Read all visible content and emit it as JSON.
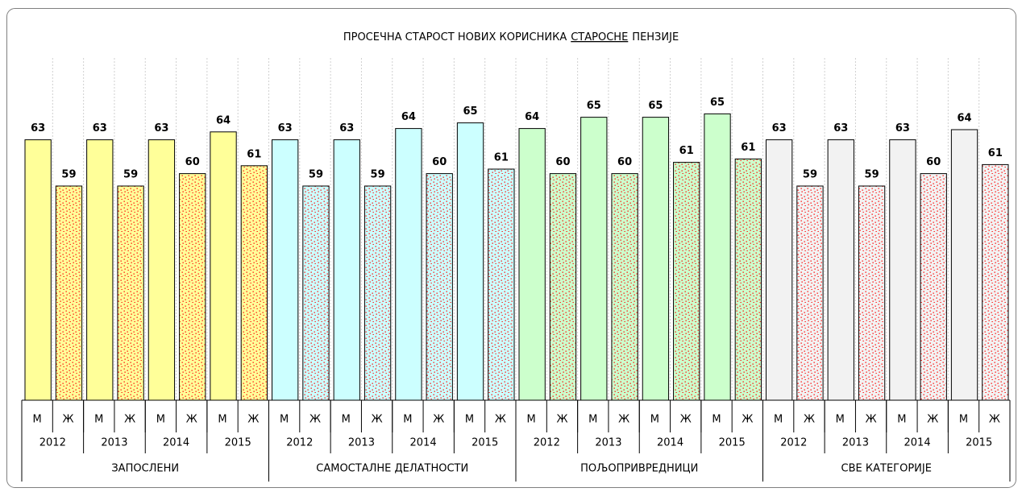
{
  "chart_data": {
    "type": "bar",
    "title": {
      "before": "ПРОСЕЧНА СТАРОСТ НОВИХ КОРИСНИКА",
      "underlined": "СТАРОСНЕ",
      "after": "ПЕНЗИЈЕ"
    },
    "groups": [
      "ЗАПОСЛЕНИ",
      "САМОСТАЛНЕ ДЕЛАТНОСТИ",
      "ПОЉОПРИВРЕДНИЦИ",
      "СВЕ КАТЕГОРИЈЕ"
    ],
    "group_colors": [
      "#ffff99",
      "#ccffff",
      "#ccffcc",
      "#f2f2f2"
    ],
    "pattern_color": "#ff0000",
    "categories": [
      "2012",
      "2013",
      "2014",
      "2015",
      "2012",
      "2013",
      "2014",
      "2015",
      "2012",
      "2013",
      "2014",
      "2015",
      "2012",
      "2013",
      "2014",
      "2015"
    ],
    "series": [
      {
        "name": "М",
        "pattern": "solid",
        "values": [
          63.1,
          63.1,
          63.1,
          63.8,
          63.1,
          63.1,
          64.1,
          64.6,
          64.1,
          65.1,
          65.1,
          65.4,
          63.1,
          63.1,
          63.1,
          64.0
        ],
        "value_labels": [
          "63",
          "63",
          "63",
          "64",
          "63",
          "63",
          "64",
          "65",
          "64",
          "65",
          "65",
          "65",
          "63",
          "63",
          "63",
          "64"
        ]
      },
      {
        "name": "Ж",
        "pattern": "dots",
        "values": [
          59.0,
          59.0,
          60.1,
          60.8,
          59.0,
          59.0,
          60.1,
          60.5,
          60.1,
          60.1,
          61.1,
          61.4,
          59.0,
          59.0,
          60.1,
          60.9
        ],
        "value_labels": [
          "59",
          "59",
          "60",
          "61",
          "59",
          "59",
          "60",
          "61",
          "60",
          "60",
          "61",
          "61",
          "59",
          "59",
          "60",
          "61"
        ]
      }
    ],
    "ylim": [
      40,
      70
    ],
    "grid": true
  }
}
